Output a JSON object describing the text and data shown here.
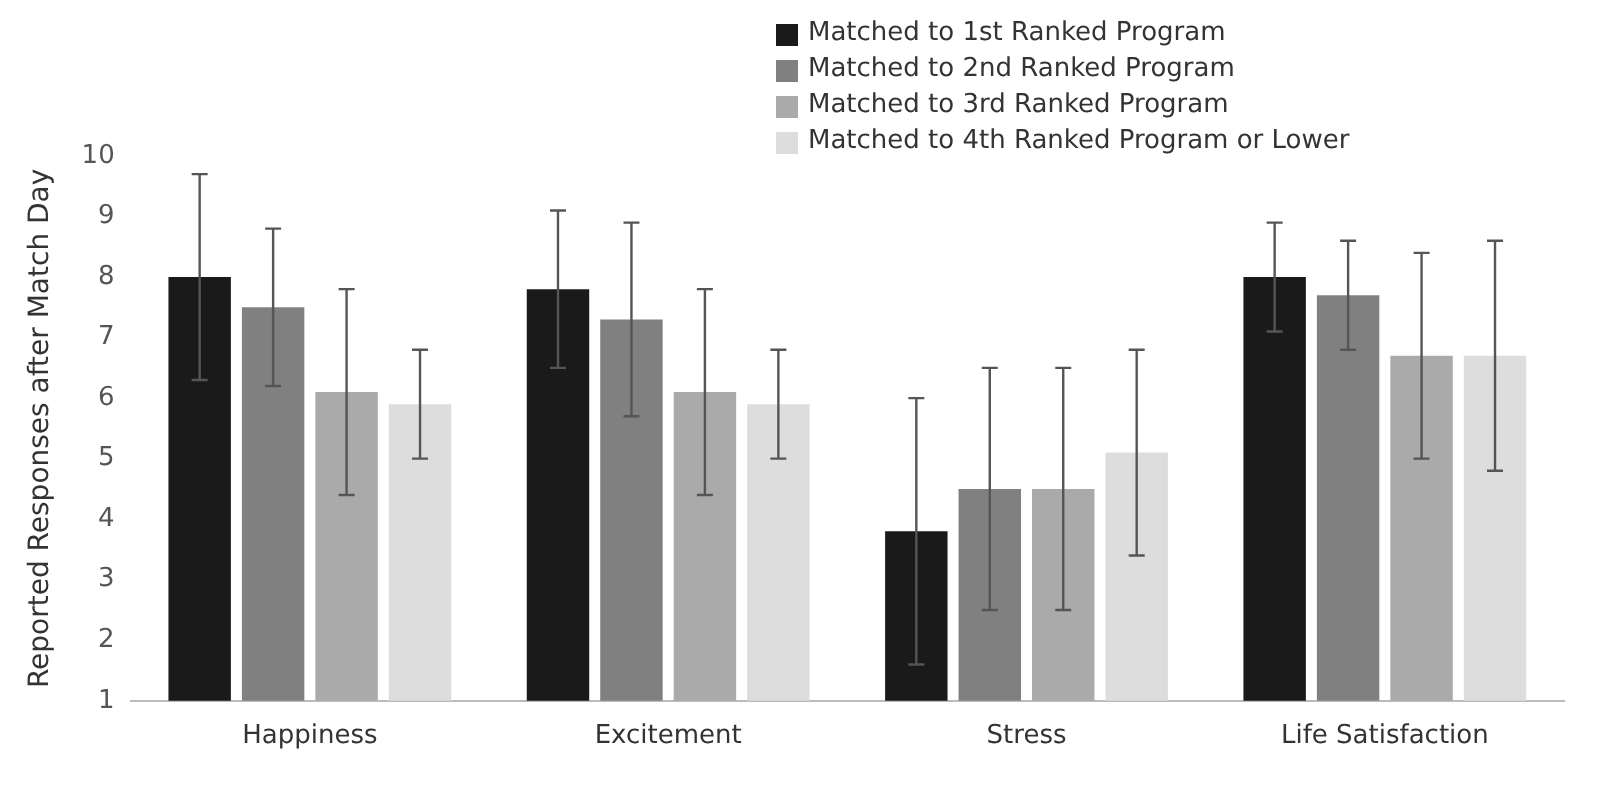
{
  "chart_data": {
    "type": "bar",
    "ylabel": "Reported Responses after Match Day",
    "categories": [
      "Happiness",
      "Excitement",
      "Stress",
      "Life Satisfaction"
    ],
    "series": [
      {
        "name": "Matched to 1st Ranked Program",
        "color": "#1a1a1a",
        "values": [
          8.0,
          7.8,
          3.8,
          8.0
        ],
        "errors": [
          [
            6.3,
            9.7
          ],
          [
            6.5,
            9.1
          ],
          [
            1.6,
            6.0
          ],
          [
            7.1,
            8.9
          ]
        ]
      },
      {
        "name": "Matched to 2nd Ranked Program",
        "color": "#808080",
        "values": [
          7.5,
          7.3,
          4.5,
          7.7
        ],
        "errors": [
          [
            6.2,
            8.8
          ],
          [
            5.7,
            8.9
          ],
          [
            2.5,
            6.5
          ],
          [
            6.8,
            8.6
          ]
        ]
      },
      {
        "name": "Matched to 3rd Ranked Program",
        "color": "#aaaaaa",
        "values": [
          6.1,
          6.1,
          4.5,
          6.7
        ],
        "errors": [
          [
            4.4,
            7.8
          ],
          [
            4.4,
            7.8
          ],
          [
            2.5,
            6.5
          ],
          [
            5.0,
            8.4
          ]
        ]
      },
      {
        "name": "Matched to 4th Ranked Program or Lower",
        "color": "#dddddd",
        "values": [
          5.9,
          5.9,
          5.1,
          6.7
        ],
        "errors": [
          [
            5.0,
            6.8
          ],
          [
            5.0,
            6.8
          ],
          [
            3.4,
            6.8
          ],
          [
            4.8,
            8.6
          ]
        ]
      }
    ],
    "ylim": [
      1,
      10
    ],
    "yticks": [
      1,
      2,
      3,
      4,
      5,
      6,
      7,
      8,
      9,
      10
    ],
    "grid": false,
    "legend": "top"
  }
}
